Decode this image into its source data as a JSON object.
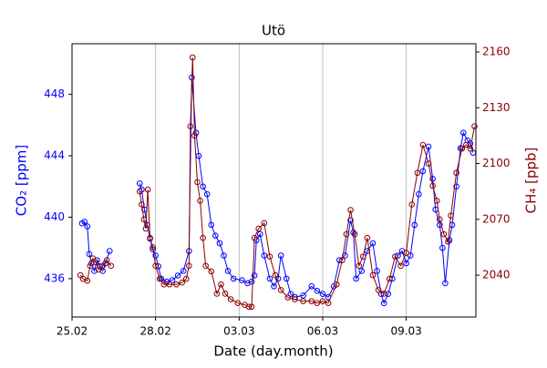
{
  "chart_data": {
    "type": "line",
    "title": "Utö",
    "xlabel": "Date (day.month)",
    "ylabel": "CO₂ [ppm]",
    "y2label": "CH₄ [ppb]",
    "xlim": [
      0,
      14.5
    ],
    "xticks": [
      {
        "value": 0,
        "label": "25.02"
      },
      {
        "value": 3,
        "label": "28.02"
      },
      {
        "value": 6,
        "label": "03.03"
      },
      {
        "value": 9,
        "label": "06.03"
      },
      {
        "value": 12,
        "label": "09.03"
      }
    ],
    "ylim": [
      433.5,
      451.3
    ],
    "yticks": [
      436,
      440,
      444,
      448
    ],
    "y2lim": [
      2017.5,
      2164.4
    ],
    "y2ticks": [
      2040,
      2070,
      2100,
      2130,
      2160
    ],
    "grid": "x",
    "series": [
      {
        "name": "CO₂",
        "color": "#0000ff",
        "axis": "y",
        "x": [
          0.36,
          0.45,
          0.55,
          0.62,
          0.7,
          0.8,
          0.9,
          1.0,
          1.1,
          1.2,
          1.35,
          2.0,
          2.43,
          2.5,
          2.6,
          2.7,
          2.8,
          2.9,
          3.0,
          3.1,
          3.2,
          3.4,
          3.6,
          3.8,
          4.0,
          4.2,
          4.3,
          4.45,
          4.55,
          4.7,
          4.85,
          5.0,
          5.15,
          5.3,
          5.45,
          5.6,
          5.8,
          6.1,
          6.3,
          6.45,
          6.55,
          6.62,
          6.75,
          6.9,
          7.1,
          7.25,
          7.4,
          7.5,
          7.7,
          7.85,
          8.0,
          8.3,
          8.6,
          8.8,
          9.0,
          9.2,
          9.4,
          9.6,
          9.8,
          10.0,
          10.1,
          10.2,
          10.4,
          10.6,
          10.8,
          10.95,
          11.1,
          11.2,
          11.35,
          11.5,
          11.7,
          11.85,
          12.0,
          12.15,
          12.3,
          12.45,
          12.6,
          12.8,
          12.95,
          13.05,
          13.2,
          13.3,
          13.4,
          13.55,
          13.65,
          13.8,
          13.95,
          14.05,
          14.2,
          14.3,
          14.4
        ],
        "values": [
          439.6,
          439.7,
          439.4,
          437.6,
          437,
          436.5,
          437.2,
          436.8,
          436.5,
          437,
          437.8,
          null,
          442.2,
          441.8,
          440.5,
          439.5,
          438.6,
          437.9,
          437.5,
          436.8,
          436,
          435.8,
          435.9,
          436.2,
          436.5,
          437.8,
          449.1,
          445.5,
          444,
          442,
          441.5,
          439.5,
          438.8,
          438.3,
          437.5,
          436.5,
          436,
          435.9,
          435.7,
          435.8,
          436.2,
          438.5,
          438.9,
          437.5,
          436,
          435.5,
          436,
          437.5,
          436,
          435,
          434.8,
          434.9,
          435.5,
          435.2,
          435,
          434.8,
          435.5,
          437.2,
          437.5,
          439.8,
          439,
          436,
          436.5,
          437.8,
          438.3,
          436.5,
          435,
          434.4,
          435,
          436,
          437.5,
          437.8,
          437,
          437.5,
          439.5,
          441.5,
          443,
          444.6,
          442.5,
          440.5,
          439.5,
          438,
          435.7,
          438.5,
          439.5,
          442,
          444.5,
          445.5,
          445,
          444.8,
          444.2
        ]
      },
      {
        "name": "CH₄",
        "color": "#8b0000",
        "axis": "y2",
        "x": [
          0.3,
          0.4,
          0.55,
          0.65,
          0.75,
          0.85,
          0.95,
          1.1,
          1.25,
          1.4,
          2.0,
          2.43,
          2.5,
          2.58,
          2.65,
          2.72,
          2.8,
          2.9,
          3.0,
          3.15,
          3.3,
          3.5,
          3.75,
          3.95,
          4.1,
          4.2,
          4.25,
          4.33,
          4.4,
          4.5,
          4.6,
          4.7,
          4.8,
          5.0,
          5.2,
          5.35,
          5.5,
          5.7,
          5.95,
          6.2,
          6.35,
          6.45,
          6.55,
          6.7,
          6.9,
          7.1,
          7.3,
          7.5,
          7.75,
          8.0,
          8.3,
          8.6,
          8.8,
          9.0,
          9.2,
          9.5,
          9.7,
          9.85,
          10.0,
          10.15,
          10.3,
          10.45,
          10.6,
          10.8,
          11.0,
          11.2,
          11.4,
          11.6,
          11.8,
          12.0,
          12.2,
          12.4,
          12.6,
          12.8,
          12.95,
          13.1,
          13.2,
          13.35,
          13.5,
          13.6,
          13.8,
          14.0,
          14.15,
          14.3,
          14.45
        ],
        "values": [
          2040,
          2038,
          2037,
          2045,
          2049,
          2047,
          2043,
          2045,
          2048,
          2045,
          null,
          2085,
          2078,
          2070,
          2065,
          2086,
          2060,
          2055,
          2045,
          2038,
          2035,
          2035,
          2035,
          2036,
          2038,
          2045,
          2120,
          2157,
          2115,
          2090,
          2080,
          2060,
          2045,
          2042,
          2030,
          2035,
          2030,
          2027,
          2025,
          2024,
          2023,
          2023,
          2060,
          2065,
          2068,
          2050,
          2040,
          2032,
          2028,
          2027,
          2026,
          2026,
          2025,
          2026,
          2025,
          2035,
          2048,
          2062,
          2075,
          2062,
          2045,
          2050,
          2060,
          2040,
          2032,
          2030,
          2038,
          2050,
          2045,
          2052,
          2078,
          2095,
          2110,
          2100,
          2088,
          2080,
          2070,
          2062,
          2058,
          2072,
          2095,
          2108,
          2110,
          2108,
          2120
        ]
      }
    ]
  }
}
